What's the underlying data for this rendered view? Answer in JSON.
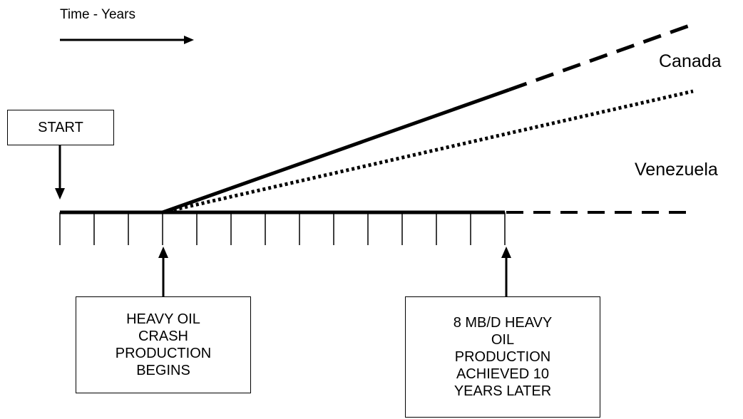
{
  "time_label": "Time - Years",
  "start_label": "START",
  "series_labels": {
    "canada": "Canada",
    "venezuela": "Venezuela"
  },
  "annotations": {
    "crash_start": [
      "HEAVY OIL",
      "CRASH",
      "PRODUCTION",
      "BEGINS"
    ],
    "target_reached": [
      "8 MB/D HEAVY",
      "OIL",
      "PRODUCTION",
      "ACHIEVED 10",
      "YEARS LATER"
    ]
  },
  "colors": {
    "line": "#000000",
    "background": "#ffffff"
  }
}
